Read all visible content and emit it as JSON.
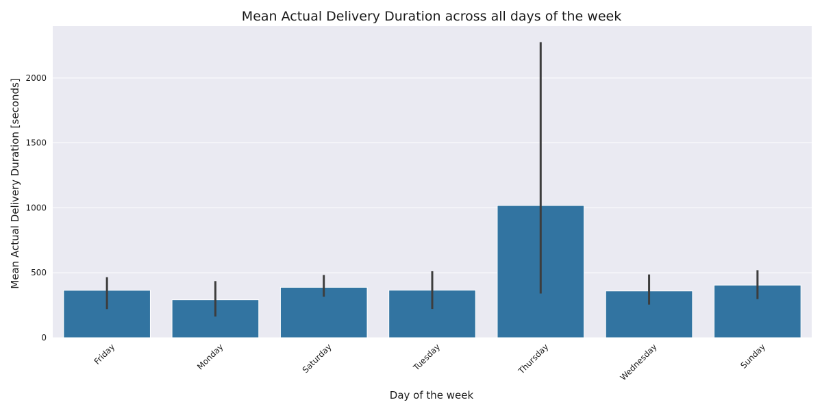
{
  "chart_data": {
    "type": "bar",
    "title": "Mean Actual Delivery Duration across all days of the week",
    "xlabel": "Day of the week",
    "ylabel": "Mean Actual Delivery Duration [seconds]",
    "categories": [
      "Friday",
      "Monday",
      "Saturday",
      "Tuesday",
      "Thursday",
      "Wednesday",
      "Sunday"
    ],
    "values": [
      365,
      292,
      388,
      366,
      1018,
      360,
      405
    ],
    "error_low": [
      220,
      163,
      316,
      221,
      340,
      255,
      297
    ],
    "error_high": [
      466,
      436,
      483,
      512,
      2276,
      487,
      520
    ],
    "ylim": [
      0,
      2400
    ],
    "yticks": [
      0,
      500,
      1000,
      1500,
      2000
    ],
    "grid": true,
    "colors": {
      "bar": "#3274a1",
      "errorbar": "#3d3d3d",
      "plot_background": "#eaeaf2",
      "grid": "#ffffff"
    }
  }
}
